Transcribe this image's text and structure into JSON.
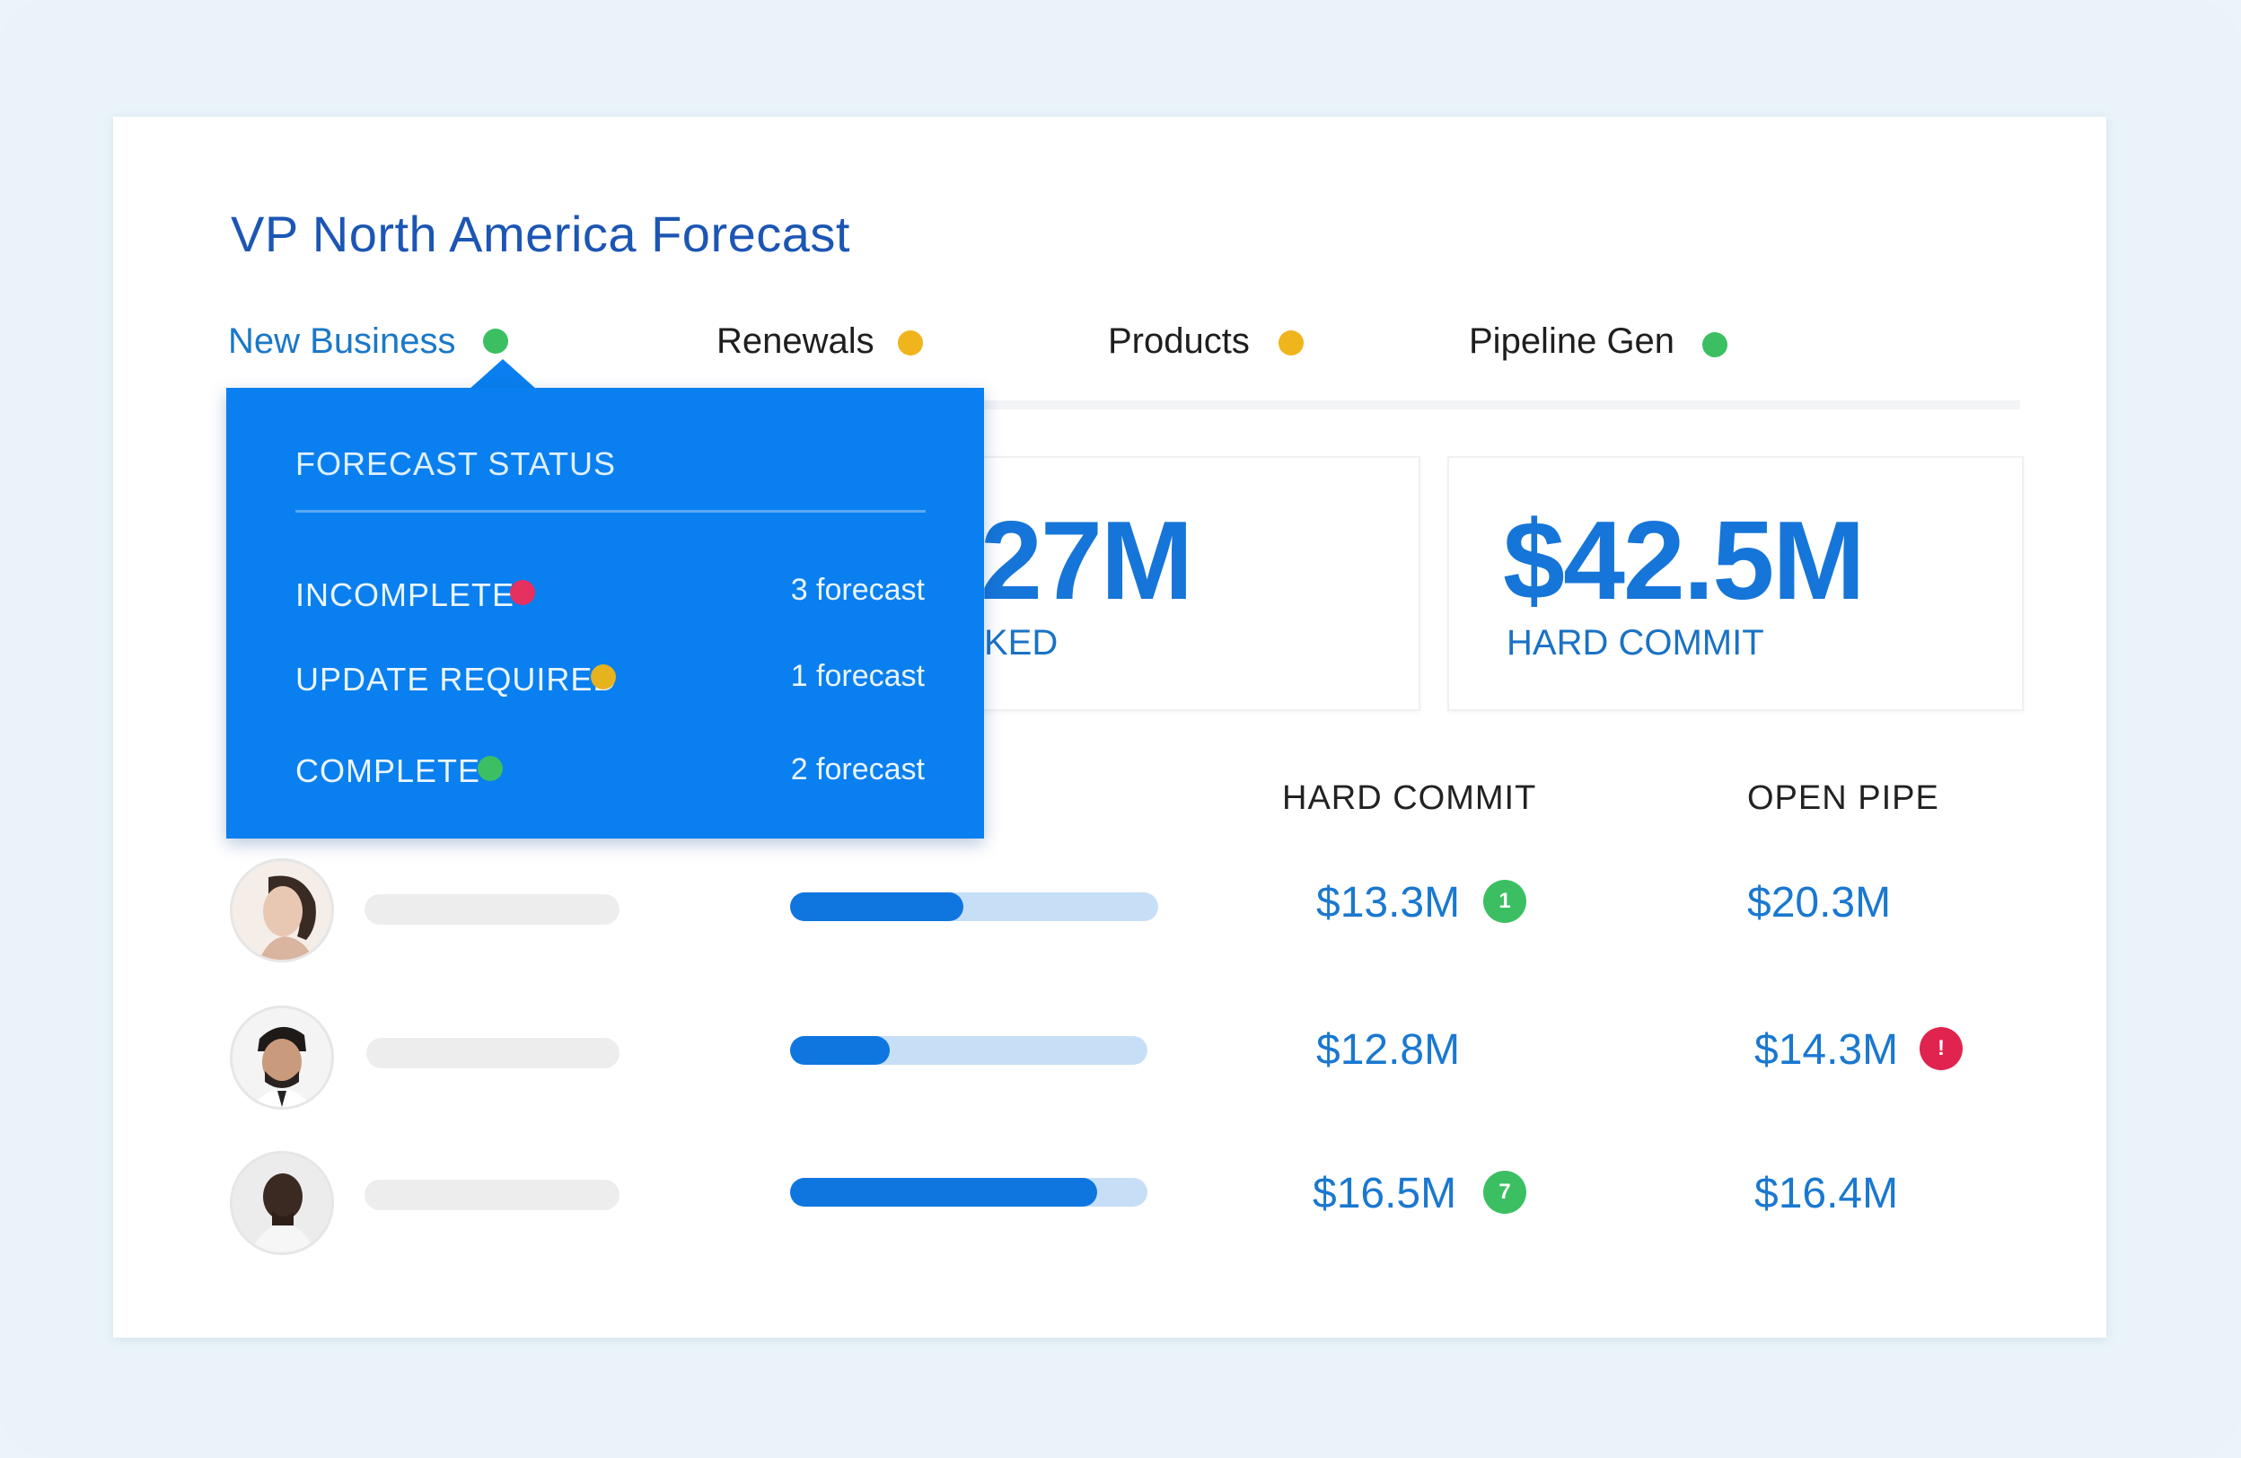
{
  "header": {
    "title": "VP North America Forecast"
  },
  "tabs": [
    {
      "label": "New Business",
      "status_color": "#3bbf62"
    },
    {
      "label": "Renewals",
      "status_color": "#f0b41c"
    },
    {
      "label": "Products",
      "status_color": "#f0b41c"
    },
    {
      "label": "Pipeline Gen",
      "status_color": "#3bbf62"
    }
  ],
  "stats": {
    "worked": {
      "value": "27M",
      "label": "KED"
    },
    "hard_commit": {
      "value": "$42.5M",
      "label": "HARD COMMIT"
    }
  },
  "columns": {
    "hard_commit": "HARD COMMIT",
    "open_pipe": "OPEN PIPE"
  },
  "rows": [
    {
      "progress": 0.47,
      "hard_commit": "$13.3M",
      "hard_commit_badge": "1",
      "open_pipe": "$20.3M",
      "open_pipe_badge": ""
    },
    {
      "progress": 0.28,
      "hard_commit": "$12.8M",
      "hard_commit_badge": "",
      "open_pipe": "$14.3M",
      "open_pipe_badge": "!"
    },
    {
      "progress": 0.86,
      "hard_commit": "$16.5M",
      "hard_commit_badge": "7",
      "open_pipe": "$16.4M",
      "open_pipe_badge": ""
    }
  ],
  "popover": {
    "title": "FORECAST STATUS",
    "items": [
      {
        "label": "INCOMPLETE",
        "count": "3 forecast",
        "color": "#e53060"
      },
      {
        "label": "UPDATE REQUIRED",
        "count": "1 forecast",
        "color": "#e6b21e"
      },
      {
        "label": "COMPLETE",
        "count": "2 forecast",
        "color": "#3bbf62"
      }
    ]
  },
  "colors": {
    "accent": "#0a7ff0",
    "positive": "#3bbf62",
    "negative": "#e0244f",
    "warning": "#f0b41c"
  }
}
